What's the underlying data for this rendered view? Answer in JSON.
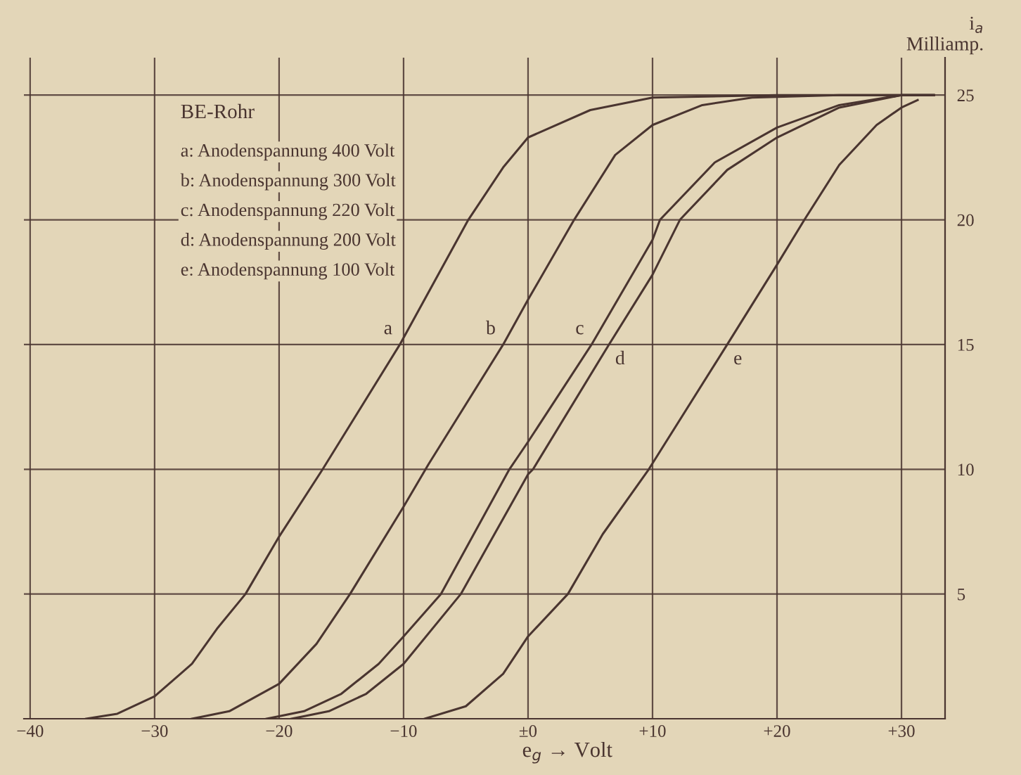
{
  "chart_data": {
    "type": "line",
    "title": "BE-Rohr",
    "xlabel": "e$_{g}$ → Volt",
    "ylabel": "i$_{a}$\nMilliamp.",
    "annotations": [
      "a: Anodenspannung 400 Volt",
      "b: Anodenspannung 300 Volt",
      "c: Anodenspannung 220 Volt",
      "d: Anodenspannung 200 Volt",
      "e: Anodenspannung 100 Volt"
    ],
    "xlim": [
      -40.5,
      33.5
    ],
    "ylim": [
      0,
      26.5
    ],
    "xticks": [
      {
        "value": -40,
        "label": "−40"
      },
      {
        "value": -30,
        "label": "−30"
      },
      {
        "value": -20,
        "label": "−20"
      },
      {
        "value": -10,
        "label": "−10"
      },
      {
        "value": 0,
        "label": "±0"
      },
      {
        "value": 10,
        "label": "+10"
      },
      {
        "value": 20,
        "label": "+20"
      },
      {
        "value": 30,
        "label": "+30"
      }
    ],
    "yticks": [
      5,
      10,
      15,
      20,
      25
    ],
    "grid": true,
    "marker": "none",
    "line_style": "solid",
    "series": [
      {
        "name": "a",
        "color": "#4a3530",
        "x": [
          -35.5,
          -33,
          -30,
          -27,
          -25,
          -22.7,
          -20,
          -16.5,
          -10.3,
          -4.8,
          -2,
          0,
          5,
          10,
          20,
          30,
          32.6
        ],
        "values": [
          0,
          0.2,
          0.9,
          2.2,
          3.6,
          5,
          7.3,
          10,
          15,
          20,
          22.1,
          23.3,
          24.4,
          24.9,
          25,
          25,
          25
        ]
      },
      {
        "name": "b",
        "color": "#4a3530",
        "x": [
          -27,
          -24,
          -20,
          -17,
          -14.3,
          -10,
          -8,
          -2,
          0,
          3.7,
          7,
          10,
          14,
          18,
          25,
          30,
          32.6
        ],
        "values": [
          0,
          0.3,
          1.4,
          3,
          5,
          8.5,
          10.2,
          15,
          16.8,
          20,
          22.6,
          23.8,
          24.6,
          24.9,
          25,
          25,
          25
        ]
      },
      {
        "name": "c",
        "color": "#4a3530",
        "x": [
          -21,
          -18,
          -15,
          -12,
          -10,
          -7,
          -1.5,
          0,
          5.1,
          10,
          10.6,
          15,
          20,
          25,
          30,
          32.6
        ],
        "values": [
          0,
          0.3,
          1,
          2.2,
          3.3,
          5,
          10,
          11.1,
          15,
          19.2,
          20,
          22.3,
          23.7,
          24.6,
          25,
          25
        ]
      },
      {
        "name": "d",
        "color": "#4a3530",
        "x": [
          -19,
          -16,
          -13,
          -10,
          -5.4,
          0,
          0.4,
          6.5,
          10,
          12.2,
          16,
          20,
          25,
          30,
          32.6
        ],
        "values": [
          0,
          0.3,
          1,
          2.2,
          5,
          9.8,
          10,
          15,
          17.8,
          20,
          22,
          23.3,
          24.5,
          25,
          25
        ]
      },
      {
        "name": "e",
        "color": "#4a3530",
        "x": [
          -8.3,
          -5,
          -2,
          0,
          3.2,
          6,
          9.7,
          16,
          20,
          22.2,
          25,
          28,
          30,
          31.3
        ],
        "values": [
          0,
          0.5,
          1.8,
          3.3,
          5,
          7.4,
          10,
          15,
          18.2,
          20,
          22.2,
          23.8,
          24.5,
          24.8
        ]
      }
    ]
  }
}
